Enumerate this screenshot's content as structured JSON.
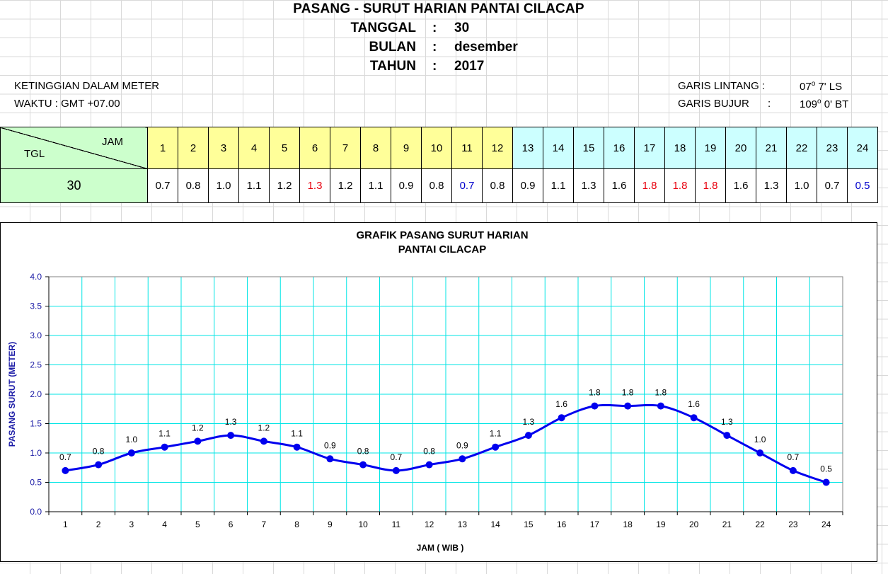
{
  "header": {
    "title": "PASANG - SURUT HARIAN PANTAI CILACAP",
    "rows": [
      {
        "label": "TANGGAL",
        "colon": ":",
        "value": "30"
      },
      {
        "label": "BULAN",
        "colon": ":",
        "value": "desember"
      },
      {
        "label": "TAHUN",
        "colon": ":",
        "value": "2017"
      }
    ]
  },
  "info": {
    "height_unit": "KETINGGIAN DALAM METER",
    "time_zone": "WAKTU : GMT +07.00",
    "lat_label": "GARIS LINTANG :",
    "lat_value_deg": "07",
    "lat_value_rest": " 7' LS",
    "lon_label": "GARIS BUJUR",
    "lon_colon": ":",
    "lon_value_deg": "109",
    "lon_value_rest": " 0' BT",
    "degree_mark": "o"
  },
  "table": {
    "jam_label": "JAM",
    "tgl_label": "TGL",
    "date": "30",
    "hours": [
      "1",
      "2",
      "3",
      "4",
      "5",
      "6",
      "7",
      "8",
      "9",
      "10",
      "11",
      "12",
      "13",
      "14",
      "15",
      "16",
      "17",
      "18",
      "19",
      "20",
      "21",
      "22",
      "23",
      "24"
    ],
    "values": [
      "0.7",
      "0.8",
      "1.0",
      "1.1",
      "1.2",
      "1.3",
      "1.2",
      "1.1",
      "0.9",
      "0.8",
      "0.7",
      "0.8",
      "0.9",
      "1.1",
      "1.3",
      "1.6",
      "1.8",
      "1.8",
      "1.8",
      "1.6",
      "1.3",
      "1.0",
      "0.7",
      "0.5"
    ],
    "highlight": [
      "",
      "",
      "",
      "",
      "",
      "red",
      "",
      "",
      "",
      "",
      "blue",
      "",
      "",
      "",
      "",
      "",
      "red",
      "red",
      "red",
      "",
      "",
      "",
      "",
      "blue"
    ]
  },
  "colors": {
    "series": "#0000ee",
    "grid": "#00e5e5",
    "axis_label": "#1a1aa6",
    "am_fill": "#ffff99",
    "pm_fill": "#ccffff",
    "tgl_fill": "#ccffcc",
    "max": "#e8000e",
    "min": "#0000cc"
  },
  "chart_data": {
    "type": "line",
    "title": "GRAFIK  PASANG  SURUT HARIAN",
    "subtitle": "PANTAI  CILACAP",
    "xlabel": "JAM ( WIB )",
    "ylabel": "PASANG SURUT (METER)",
    "categories": [
      "1",
      "2",
      "3",
      "4",
      "5",
      "6",
      "7",
      "8",
      "9",
      "10",
      "11",
      "12",
      "13",
      "14",
      "15",
      "16",
      "17",
      "18",
      "19",
      "20",
      "21",
      "22",
      "23",
      "24"
    ],
    "series": [
      {
        "name": "Pasang Surut",
        "values": [
          0.7,
          0.8,
          1.0,
          1.1,
          1.2,
          1.3,
          1.2,
          1.1,
          0.9,
          0.8,
          0.7,
          0.8,
          0.9,
          1.1,
          1.3,
          1.6,
          1.8,
          1.8,
          1.8,
          1.6,
          1.3,
          1.0,
          0.7,
          0.5
        ]
      }
    ],
    "data_labels": [
      "0.7",
      "0.8",
      "1.0",
      "1.1",
      "1.2",
      "1.3",
      "1.2",
      "1.1",
      "0.9",
      "0.8",
      "0.7",
      "0.8",
      "0.9",
      "1.1",
      "1.3",
      "1.6",
      "1.8",
      "1.8",
      "1.8",
      "1.6",
      "1.3",
      "1.0",
      "0.7",
      "0.5"
    ],
    "ylim": [
      0,
      4
    ],
    "yticks": [
      "0.0",
      "0.5",
      "1.0",
      "1.5",
      "2.0",
      "2.5",
      "3.0",
      "3.5",
      "4.0"
    ],
    "grid": true,
    "legend": "none"
  }
}
